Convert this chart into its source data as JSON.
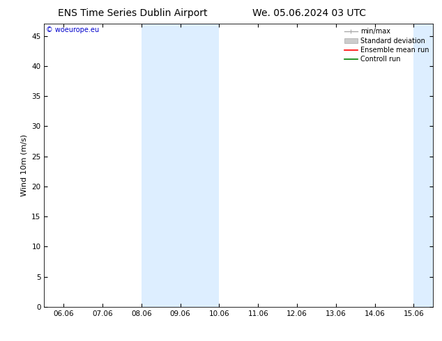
{
  "title_left": "ENS Time Series Dublin Airport",
  "title_right": "We. 05.06.2024 03 UTC",
  "ylabel": "Wind 10m (m/s)",
  "watermark": "© woeurope.eu",
  "xlim_labels": [
    "06.06",
    "07.06",
    "08.06",
    "09.06",
    "10.06",
    "11.06",
    "12.06",
    "13.06",
    "14.06",
    "15.06"
  ],
  "ylim": [
    0,
    47
  ],
  "yticks": [
    0,
    5,
    10,
    15,
    20,
    25,
    30,
    35,
    40,
    45
  ],
  "shaded_bands": [
    {
      "xstart": 2.0,
      "xend": 4.0
    },
    {
      "xstart": 9.0,
      "xend": 11.0
    }
  ],
  "shade_color": "#ddeeff",
  "background_color": "#ffffff",
  "legend_items": [
    {
      "label": "min/max",
      "color": "#aaaaaa",
      "lw": 1.0
    },
    {
      "label": "Standard deviation",
      "color": "#cccccc",
      "lw": 6.0
    },
    {
      "label": "Ensemble mean run",
      "color": "#ff0000",
      "lw": 1.2
    },
    {
      "label": "Controll run",
      "color": "#008000",
      "lw": 1.2
    }
  ],
  "title_fontsize": 10,
  "axis_fontsize": 8,
  "tick_fontsize": 7.5,
  "watermark_color": "#0000cc",
  "watermark_fontsize": 7,
  "legend_fontsize": 7
}
